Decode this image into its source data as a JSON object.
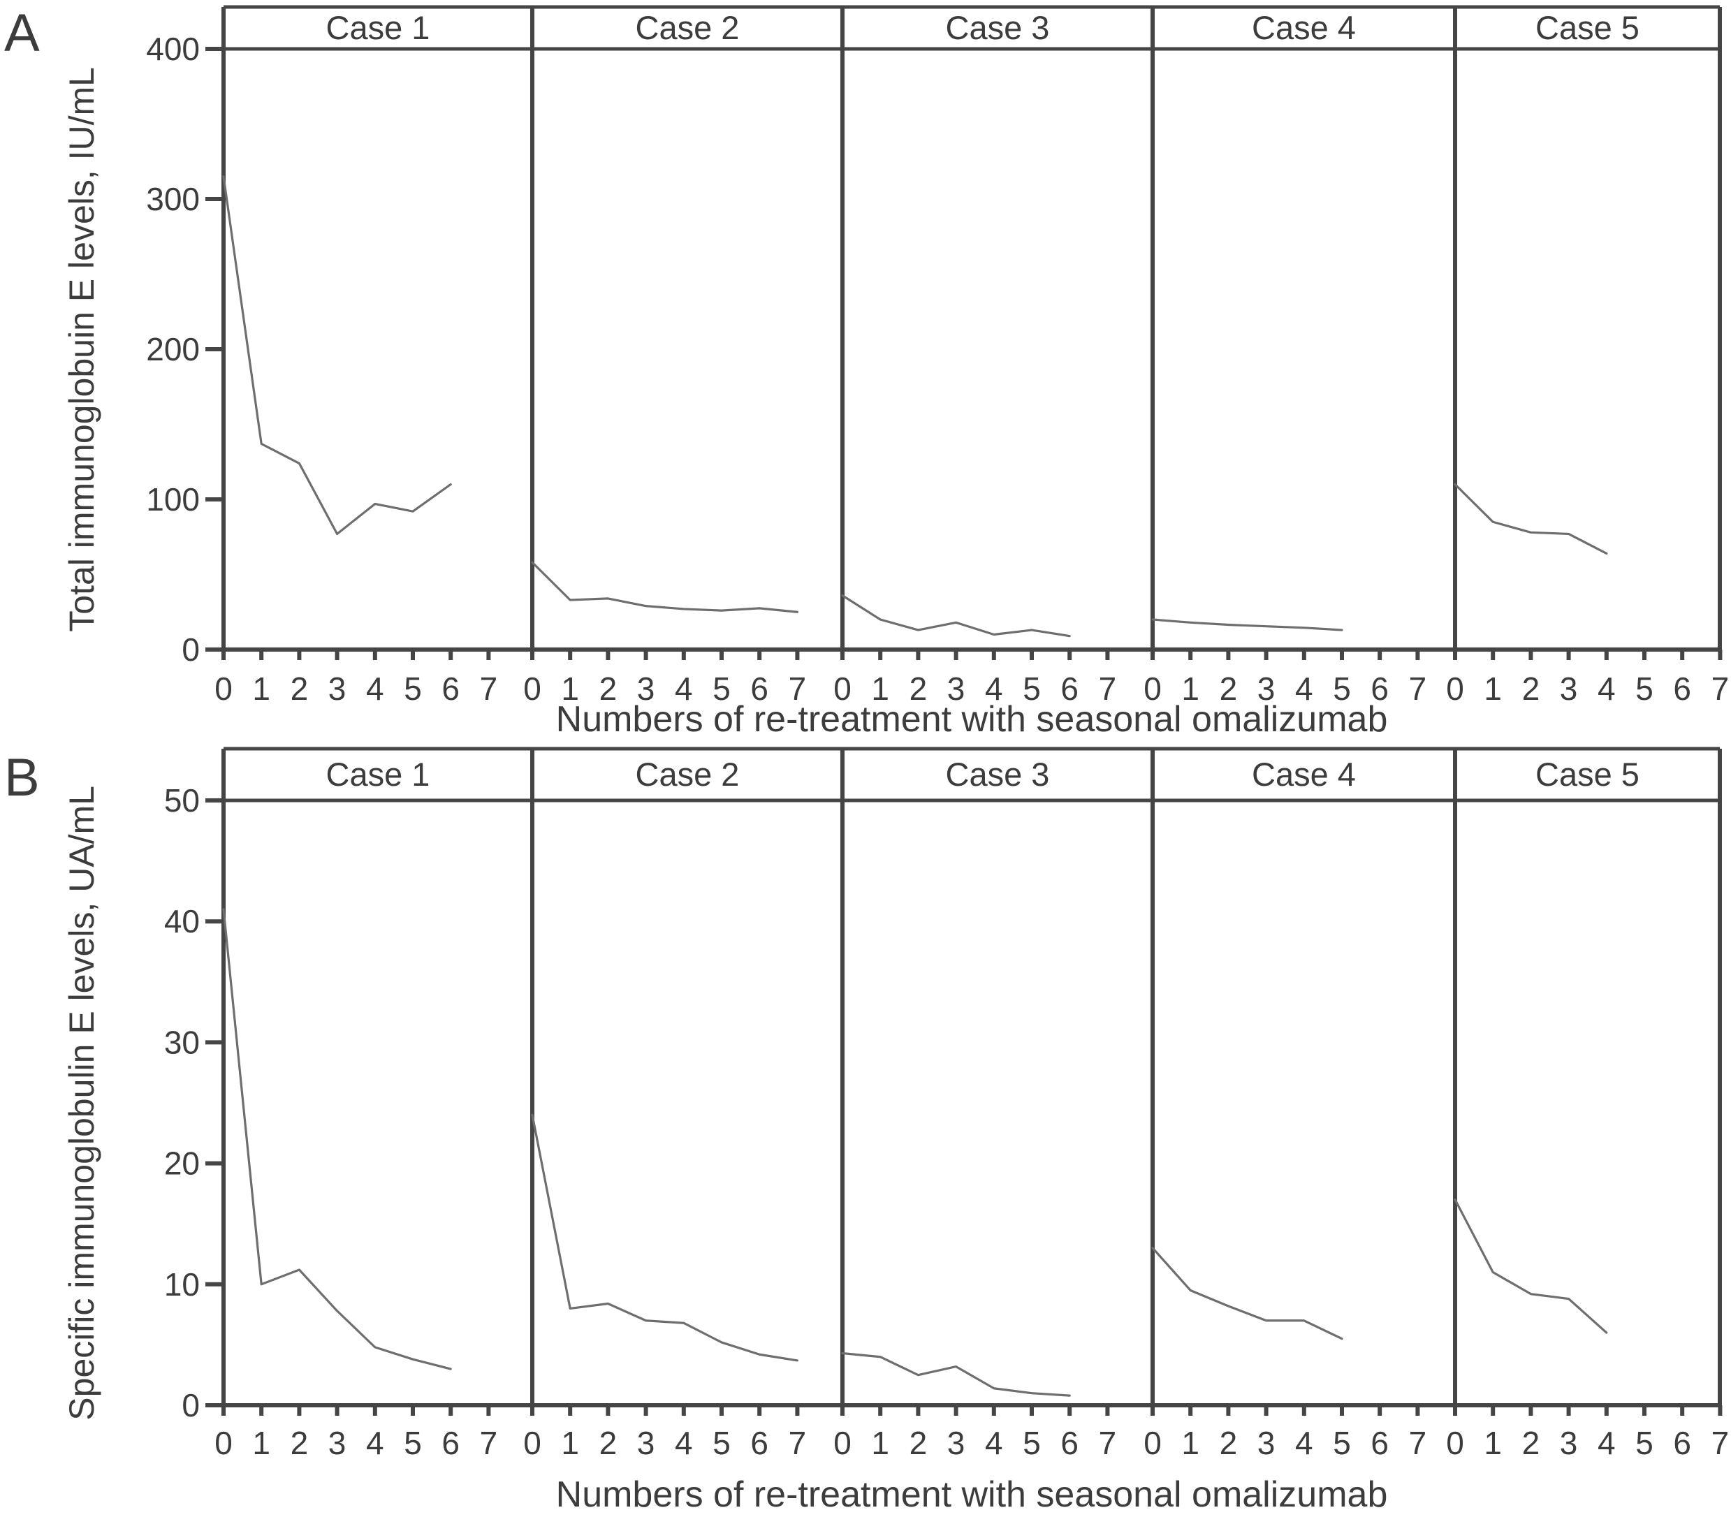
{
  "style": {
    "background": "#ffffff",
    "axis_color": "#454545",
    "line_color": "#6e6e6e",
    "text_color": "#3c3c3c"
  },
  "chart_data": [
    {
      "type": "line",
      "panel_letter": "A",
      "ylabel": "Total immunoglobuin E levels, IU/mL",
      "xlabel": "Numbers of re-treatment with seasonal omalizumab",
      "ylim": [
        0,
        400
      ],
      "yticks": [
        0,
        100,
        200,
        300,
        400
      ],
      "xlim": [
        0,
        7
      ],
      "xticks": [
        0,
        1,
        2,
        3,
        4,
        5,
        6,
        7
      ],
      "grid": false,
      "legend": "none",
      "cases": [
        {
          "name": "Case 1",
          "x": [
            0,
            1,
            2,
            3,
            4,
            5,
            6
          ],
          "y": [
            315,
            137,
            124,
            77,
            97,
            92,
            110
          ]
        },
        {
          "name": "Case 2",
          "x": [
            0,
            1,
            2,
            3,
            4,
            5,
            6,
            7
          ],
          "y": [
            58,
            33,
            34,
            29,
            27,
            26,
            27.5,
            25
          ]
        },
        {
          "name": "Case 3",
          "x": [
            0,
            1,
            2,
            3,
            4,
            5,
            6
          ],
          "y": [
            36,
            20,
            13,
            18,
            10,
            13,
            9
          ]
        },
        {
          "name": "Case 4",
          "x": [
            0,
            1,
            2,
            3,
            4,
            5
          ],
          "y": [
            20,
            18,
            16.5,
            15.5,
            14.5,
            13
          ]
        },
        {
          "name": "Case 5",
          "x": [
            0,
            1,
            2,
            3,
            4
          ],
          "y": [
            110,
            85,
            78,
            77,
            64
          ]
        }
      ]
    },
    {
      "type": "line",
      "panel_letter": "B",
      "ylabel": "Specific immunoglobulin E levels, UA/mL",
      "xlabel": "Numbers of re-treatment with seasonal omalizumab",
      "ylim": [
        0,
        50
      ],
      "yticks": [
        0,
        10,
        20,
        30,
        40,
        50
      ],
      "xlim": [
        0,
        7
      ],
      "xticks": [
        0,
        1,
        2,
        3,
        4,
        5,
        6,
        7
      ],
      "grid": false,
      "legend": "none",
      "cases": [
        {
          "name": "Case 1",
          "x": [
            0,
            1,
            2,
            3,
            4,
            5,
            6
          ],
          "y": [
            41,
            10,
            11.2,
            7.8,
            4.8,
            3.8,
            3
          ]
        },
        {
          "name": "Case 2",
          "x": [
            0,
            1,
            2,
            3,
            4,
            5,
            6,
            7
          ],
          "y": [
            24,
            8,
            8.4,
            7,
            6.8,
            5.2,
            4.2,
            3.7
          ]
        },
        {
          "name": "Case 3",
          "x": [
            0,
            1,
            2,
            3,
            4,
            5,
            6
          ],
          "y": [
            4.3,
            4,
            2.5,
            3.2,
            1.4,
            1,
            0.8
          ]
        },
        {
          "name": "Case 4",
          "x": [
            0,
            1,
            2,
            3,
            4,
            5
          ],
          "y": [
            13,
            9.5,
            8.2,
            7,
            7,
            5.5
          ]
        },
        {
          "name": "Case 5",
          "x": [
            0,
            1,
            2,
            3,
            4
          ],
          "y": [
            17,
            11,
            9.2,
            8.8,
            6
          ]
        }
      ]
    }
  ]
}
